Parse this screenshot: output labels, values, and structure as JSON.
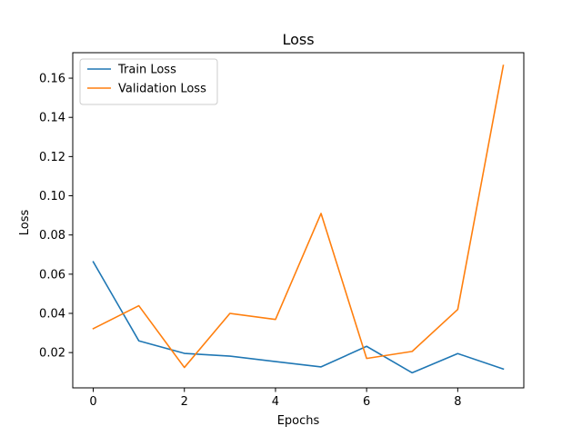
{
  "chart_data": {
    "type": "line",
    "title": "Loss",
    "xlabel": "Epochs",
    "ylabel": "Loss",
    "x": [
      0,
      1,
      2,
      3,
      4,
      5,
      6,
      7,
      8,
      9
    ],
    "xlim": [
      -0.45,
      9.45
    ],
    "ylim": [
      0.002,
      0.173
    ],
    "xticks": [
      0,
      2,
      4,
      6,
      8
    ],
    "yticks": [
      0.02,
      0.04,
      0.06,
      0.08,
      0.1,
      0.12,
      0.14,
      0.16
    ],
    "ytick_labels": [
      "0.02",
      "0.04",
      "0.06",
      "0.08",
      "0.10",
      "0.12",
      "0.14",
      "0.16"
    ],
    "xtick_labels": [
      "0",
      "2",
      "4",
      "6",
      "8"
    ],
    "grid": false,
    "legend_position": "top-left",
    "series": [
      {
        "name": "Train Loss",
        "color": "#1f77b4",
        "values": [
          0.0663,
          0.026,
          0.0196,
          0.0182,
          0.0154,
          0.0127,
          0.0232,
          0.0097,
          0.0195,
          0.0116
        ]
      },
      {
        "name": "Validation Loss",
        "color": "#ff7f0e",
        "values": [
          0.0322,
          0.0439,
          0.0124,
          0.04,
          0.0369,
          0.091,
          0.017,
          0.0206,
          0.042,
          0.1665
        ]
      }
    ]
  }
}
